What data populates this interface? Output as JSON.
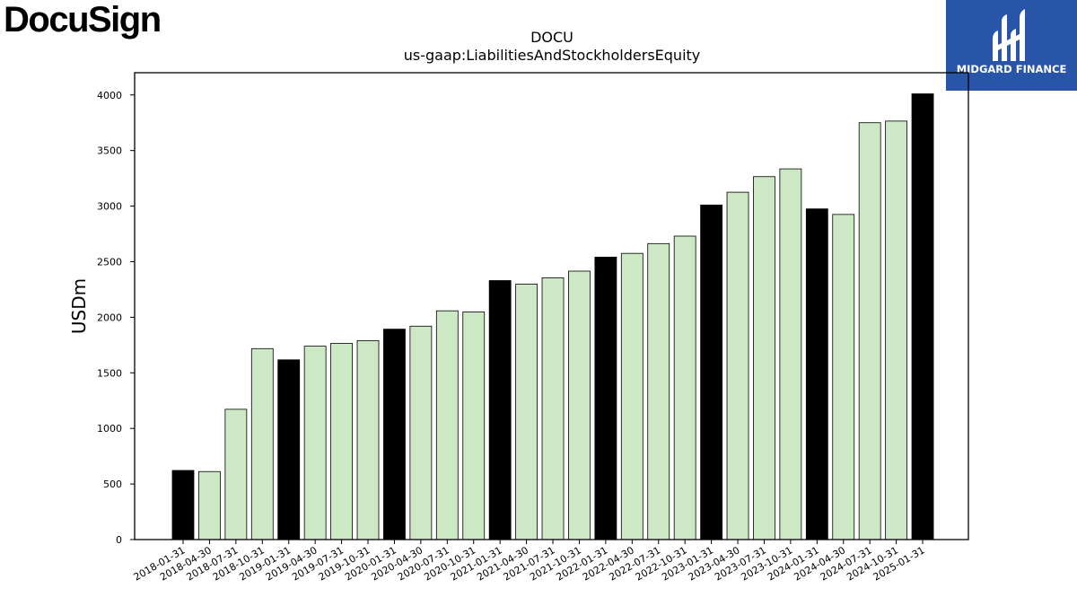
{
  "logos": {
    "left_text": "DocuSign",
    "right_text": "MIDGARD FINANCE",
    "right_bg": "#2855a8"
  },
  "chart_data": {
    "type": "bar",
    "title": "DOCU",
    "subtitle": "us-gaap:LiabilitiesAndStockholdersEquity",
    "xlabel": "",
    "ylabel": "USDm",
    "ylim": [
      0,
      4200
    ],
    "yticks": [
      0,
      500,
      1000,
      1500,
      2000,
      2500,
      3000,
      3500,
      4000
    ],
    "grid": false,
    "colors": {
      "fiscal_year_end": "#000000",
      "quarter": "#cde8c4",
      "edge": "#000000"
    },
    "categories": [
      "2018-01-31",
      "2018-04-30",
      "2018-07-31",
      "2018-10-31",
      "2019-01-31",
      "2019-04-30",
      "2019-07-31",
      "2019-10-31",
      "2020-01-31",
      "2020-04-30",
      "2020-07-31",
      "2020-10-31",
      "2021-01-31",
      "2021-04-30",
      "2021-07-31",
      "2021-10-31",
      "2022-01-31",
      "2022-04-30",
      "2022-07-31",
      "2022-10-31",
      "2023-01-31",
      "2023-04-30",
      "2023-07-31",
      "2023-10-31",
      "2024-01-31",
      "2024-04-30",
      "2024-07-31",
      "2024-10-31",
      "2025-01-31"
    ],
    "values": [
      622,
      612,
      1172,
      1718,
      1617,
      1740,
      1765,
      1790,
      1893,
      1920,
      2058,
      2048,
      2330,
      2298,
      2355,
      2415,
      2541,
      2575,
      2663,
      2730,
      3010,
      3125,
      3265,
      3335,
      2975,
      2925,
      3750,
      3765,
      4010
    ],
    "fiscal_year_end": [
      true,
      false,
      false,
      false,
      true,
      false,
      false,
      false,
      true,
      false,
      false,
      false,
      true,
      false,
      false,
      false,
      true,
      false,
      false,
      false,
      true,
      false,
      false,
      false,
      true,
      false,
      false,
      false,
      true
    ]
  }
}
